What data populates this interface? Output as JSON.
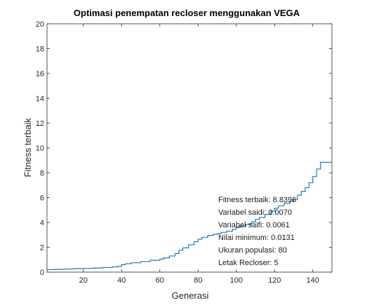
{
  "chart_data": {
    "type": "line",
    "title": "Optimasi penempatan recloser menggunakan VEGA",
    "xlabel": "Generasi",
    "ylabel": "Fitness terbaik",
    "xlim": [
      1,
      150
    ],
    "ylim": [
      0,
      20
    ],
    "xticks": [
      20,
      40,
      60,
      80,
      100,
      120,
      140
    ],
    "yticks": [
      0,
      2,
      4,
      6,
      8,
      10,
      12,
      14,
      16,
      18,
      20
    ],
    "grid": false,
    "line_color": "#1f77b4",
    "series": [
      {
        "x": [
          1,
          5,
          10,
          15,
          20,
          25,
          30,
          35,
          38,
          40,
          42,
          45,
          50,
          55,
          60,
          62,
          65,
          68,
          70,
          72,
          75,
          78,
          80,
          82,
          85,
          88,
          90,
          92,
          95,
          98,
          100,
          102,
          105,
          108,
          110,
          112,
          115,
          118,
          120,
          122,
          125,
          128,
          130,
          132,
          134,
          136,
          138,
          140,
          142,
          144,
          146,
          150
        ],
        "values": [
          0.2,
          0.22,
          0.25,
          0.28,
          0.3,
          0.33,
          0.37,
          0.42,
          0.47,
          0.6,
          0.68,
          0.75,
          0.85,
          0.95,
          1.05,
          1.15,
          1.3,
          1.5,
          1.75,
          1.95,
          2.2,
          2.45,
          2.65,
          2.8,
          2.95,
          3.05,
          3.1,
          3.2,
          3.3,
          3.45,
          3.6,
          3.7,
          3.85,
          4.05,
          4.25,
          4.4,
          4.65,
          4.9,
          5.15,
          5.35,
          5.55,
          5.7,
          5.85,
          6.2,
          6.5,
          6.8,
          7.2,
          7.7,
          8.3,
          8.84,
          8.84,
          8.84
        ]
      }
    ],
    "annotations": [
      "Fitness terbaik:  8.8396",
      "Variabel saidi: 0.0070",
      "Variabel saifi:  0.0061",
      "Nilai minimum: 0.0131",
      "Ukuran populasi:  80",
      "Letak Recloser: 5"
    ]
  }
}
